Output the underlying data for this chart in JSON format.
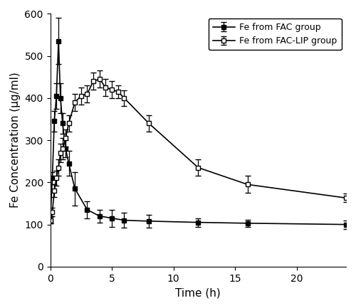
{
  "fac_time": [
    0,
    0.17,
    0.33,
    0.5,
    0.67,
    0.83,
    1.0,
    1.25,
    1.5,
    2.0,
    3.0,
    4.0,
    5.0,
    6.0,
    8.0,
    12.0,
    16.0,
    24.0
  ],
  "fac_conc": [
    110,
    210,
    345,
    405,
    535,
    400,
    340,
    280,
    245,
    185,
    135,
    120,
    115,
    110,
    108,
    105,
    103,
    100
  ],
  "fac_err": [
    8,
    15,
    25,
    30,
    55,
    35,
    25,
    20,
    30,
    40,
    20,
    15,
    20,
    18,
    15,
    10,
    8,
    10
  ],
  "lip_time": [
    0,
    0.17,
    0.33,
    0.5,
    0.67,
    0.83,
    1.0,
    1.25,
    1.5,
    2.0,
    2.5,
    3.0,
    3.5,
    4.0,
    4.5,
    5.0,
    5.5,
    6.0,
    8.0,
    12.0,
    16.0,
    24.0
  ],
  "lip_conc": [
    110,
    130,
    180,
    210,
    235,
    270,
    280,
    305,
    340,
    390,
    405,
    410,
    440,
    445,
    425,
    420,
    415,
    400,
    340,
    235,
    195,
    163
  ],
  "lip_err": [
    8,
    10,
    15,
    18,
    20,
    22,
    25,
    20,
    20,
    20,
    20,
    20,
    20,
    20,
    20,
    20,
    15,
    18,
    20,
    20,
    20,
    10
  ],
  "xlabel": "Time (h)",
  "ylabel": "Fe Concentration (μg/ml)",
  "xlim": [
    0,
    24
  ],
  "ylim": [
    0,
    600
  ],
  "xticks": [
    0,
    5,
    10,
    15,
    20
  ],
  "yticks": [
    0,
    100,
    200,
    300,
    400,
    500,
    600
  ],
  "legend_fac": "Fe from FAC group",
  "legend_lip": "Fe from FAC-LIP group",
  "fac_color": "#000000",
  "lip_color": "#000000",
  "markersize": 5,
  "linewidth": 1.2,
  "capsize": 3,
  "elinewidth": 0.9,
  "tick_labelsize": 10,
  "xlabel_fontsize": 11,
  "ylabel_fontsize": 11,
  "legend_fontsize": 9
}
